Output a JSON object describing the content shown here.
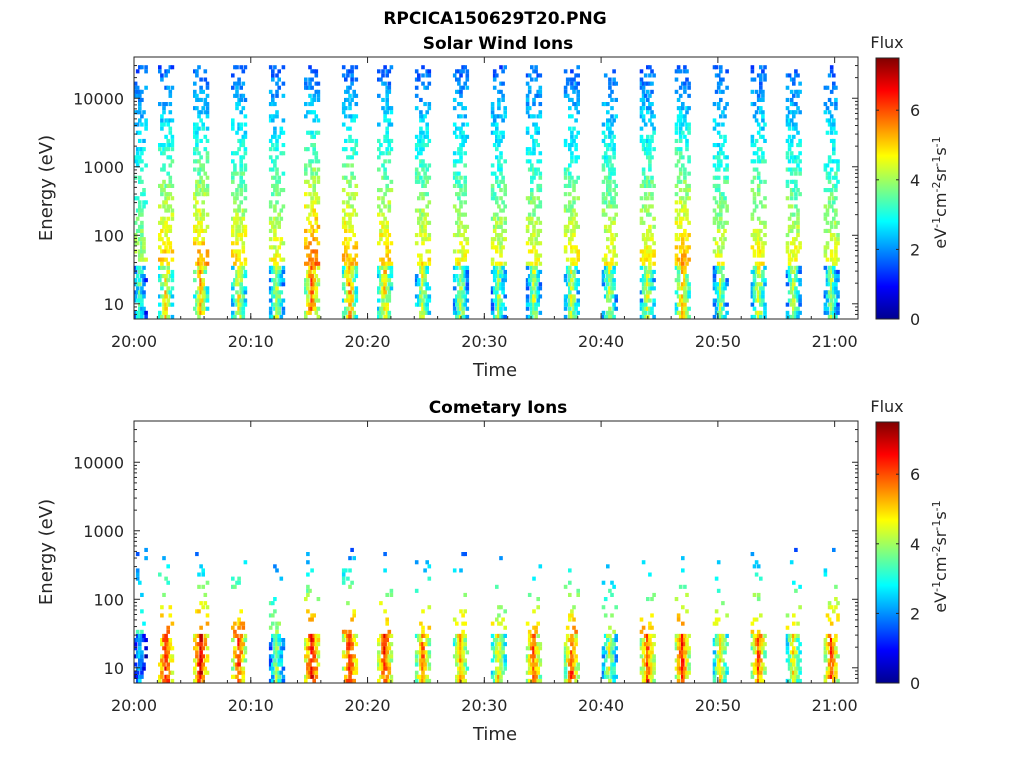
{
  "figure_title": "RPCICA150629T20.PNG",
  "chart_data": [
    {
      "type": "heatmap",
      "title": "Solar Wind Ions",
      "xlabel": "Time",
      "ylabel": "Energy (eV)",
      "y_scale": "log",
      "x_range": [
        "20:00",
        "21:02"
      ],
      "y_range": [
        6,
        40000
      ],
      "x_tick_labels": [
        "20:00",
        "20:10",
        "20:20",
        "20:30",
        "20:40",
        "20:50",
        "21:00"
      ],
      "y_tick_labels": [
        "10",
        "100",
        "1000",
        "10000"
      ],
      "colorbar": {
        "title": "Flux",
        "label": "eV-1cm-2sr-1s-1",
        "range": [
          0,
          7.5
        ],
        "tick_labels": [
          "0",
          "2",
          "4",
          "6"
        ],
        "colormap": "jet"
      },
      "scan_times": [
        "20:00:30",
        "20:02:45",
        "20:05:45",
        "20:09:00",
        "20:12:15",
        "20:15:15",
        "20:18:30",
        "20:21:30",
        "20:24:45",
        "20:28:00",
        "20:31:15",
        "20:34:15",
        "20:37:30",
        "20:40:45",
        "20:44:00",
        "20:47:00",
        "20:50:15",
        "20:53:30",
        "20:56:30",
        "20:59:45"
      ],
      "peak_flux": [
        4.0,
        5.5,
        5.8,
        5.2,
        4.8,
        6.5,
        5.8,
        5.5,
        5.0,
        4.8,
        4.6,
        4.8,
        5.0,
        4.8,
        5.0,
        5.8,
        4.6,
        5.0,
        4.8,
        4.6
      ],
      "peak_energy_eV": 20,
      "max_energy_eV": 30000
    },
    {
      "type": "heatmap",
      "title": "Cometary Ions",
      "xlabel": "Time",
      "ylabel": "Energy (eV)",
      "y_scale": "log",
      "x_range": [
        "20:00",
        "21:02"
      ],
      "y_range": [
        6,
        40000
      ],
      "x_tick_labels": [
        "20:00",
        "20:10",
        "20:20",
        "20:30",
        "20:40",
        "20:50",
        "21:00"
      ],
      "y_tick_labels": [
        "10",
        "100",
        "1000",
        "10000"
      ],
      "colorbar": {
        "title": "Flux",
        "label": "eV-1cm-2sr-1s-1",
        "range": [
          0,
          7.5
        ],
        "tick_labels": [
          "0",
          "2",
          "4",
          "6"
        ],
        "colormap": "jet"
      },
      "scan_times": [
        "20:00:30",
        "20:02:45",
        "20:05:45",
        "20:09:00",
        "20:12:15",
        "20:15:15",
        "20:18:30",
        "20:21:30",
        "20:24:45",
        "20:28:00",
        "20:31:15",
        "20:34:15",
        "20:37:30",
        "20:40:45",
        "20:44:00",
        "20:47:00",
        "20:50:15",
        "20:53:30",
        "20:56:30",
        "20:59:45"
      ],
      "peak_flux": [
        3.0,
        7.0,
        7.2,
        6.8,
        4.5,
        7.2,
        7.0,
        6.8,
        6.2,
        6.0,
        5.5,
        6.5,
        6.5,
        5.0,
        6.5,
        6.8,
        5.5,
        6.5,
        5.5,
        6.5
      ],
      "peak_energy_eV": 18,
      "max_energy_eV": 600
    }
  ]
}
